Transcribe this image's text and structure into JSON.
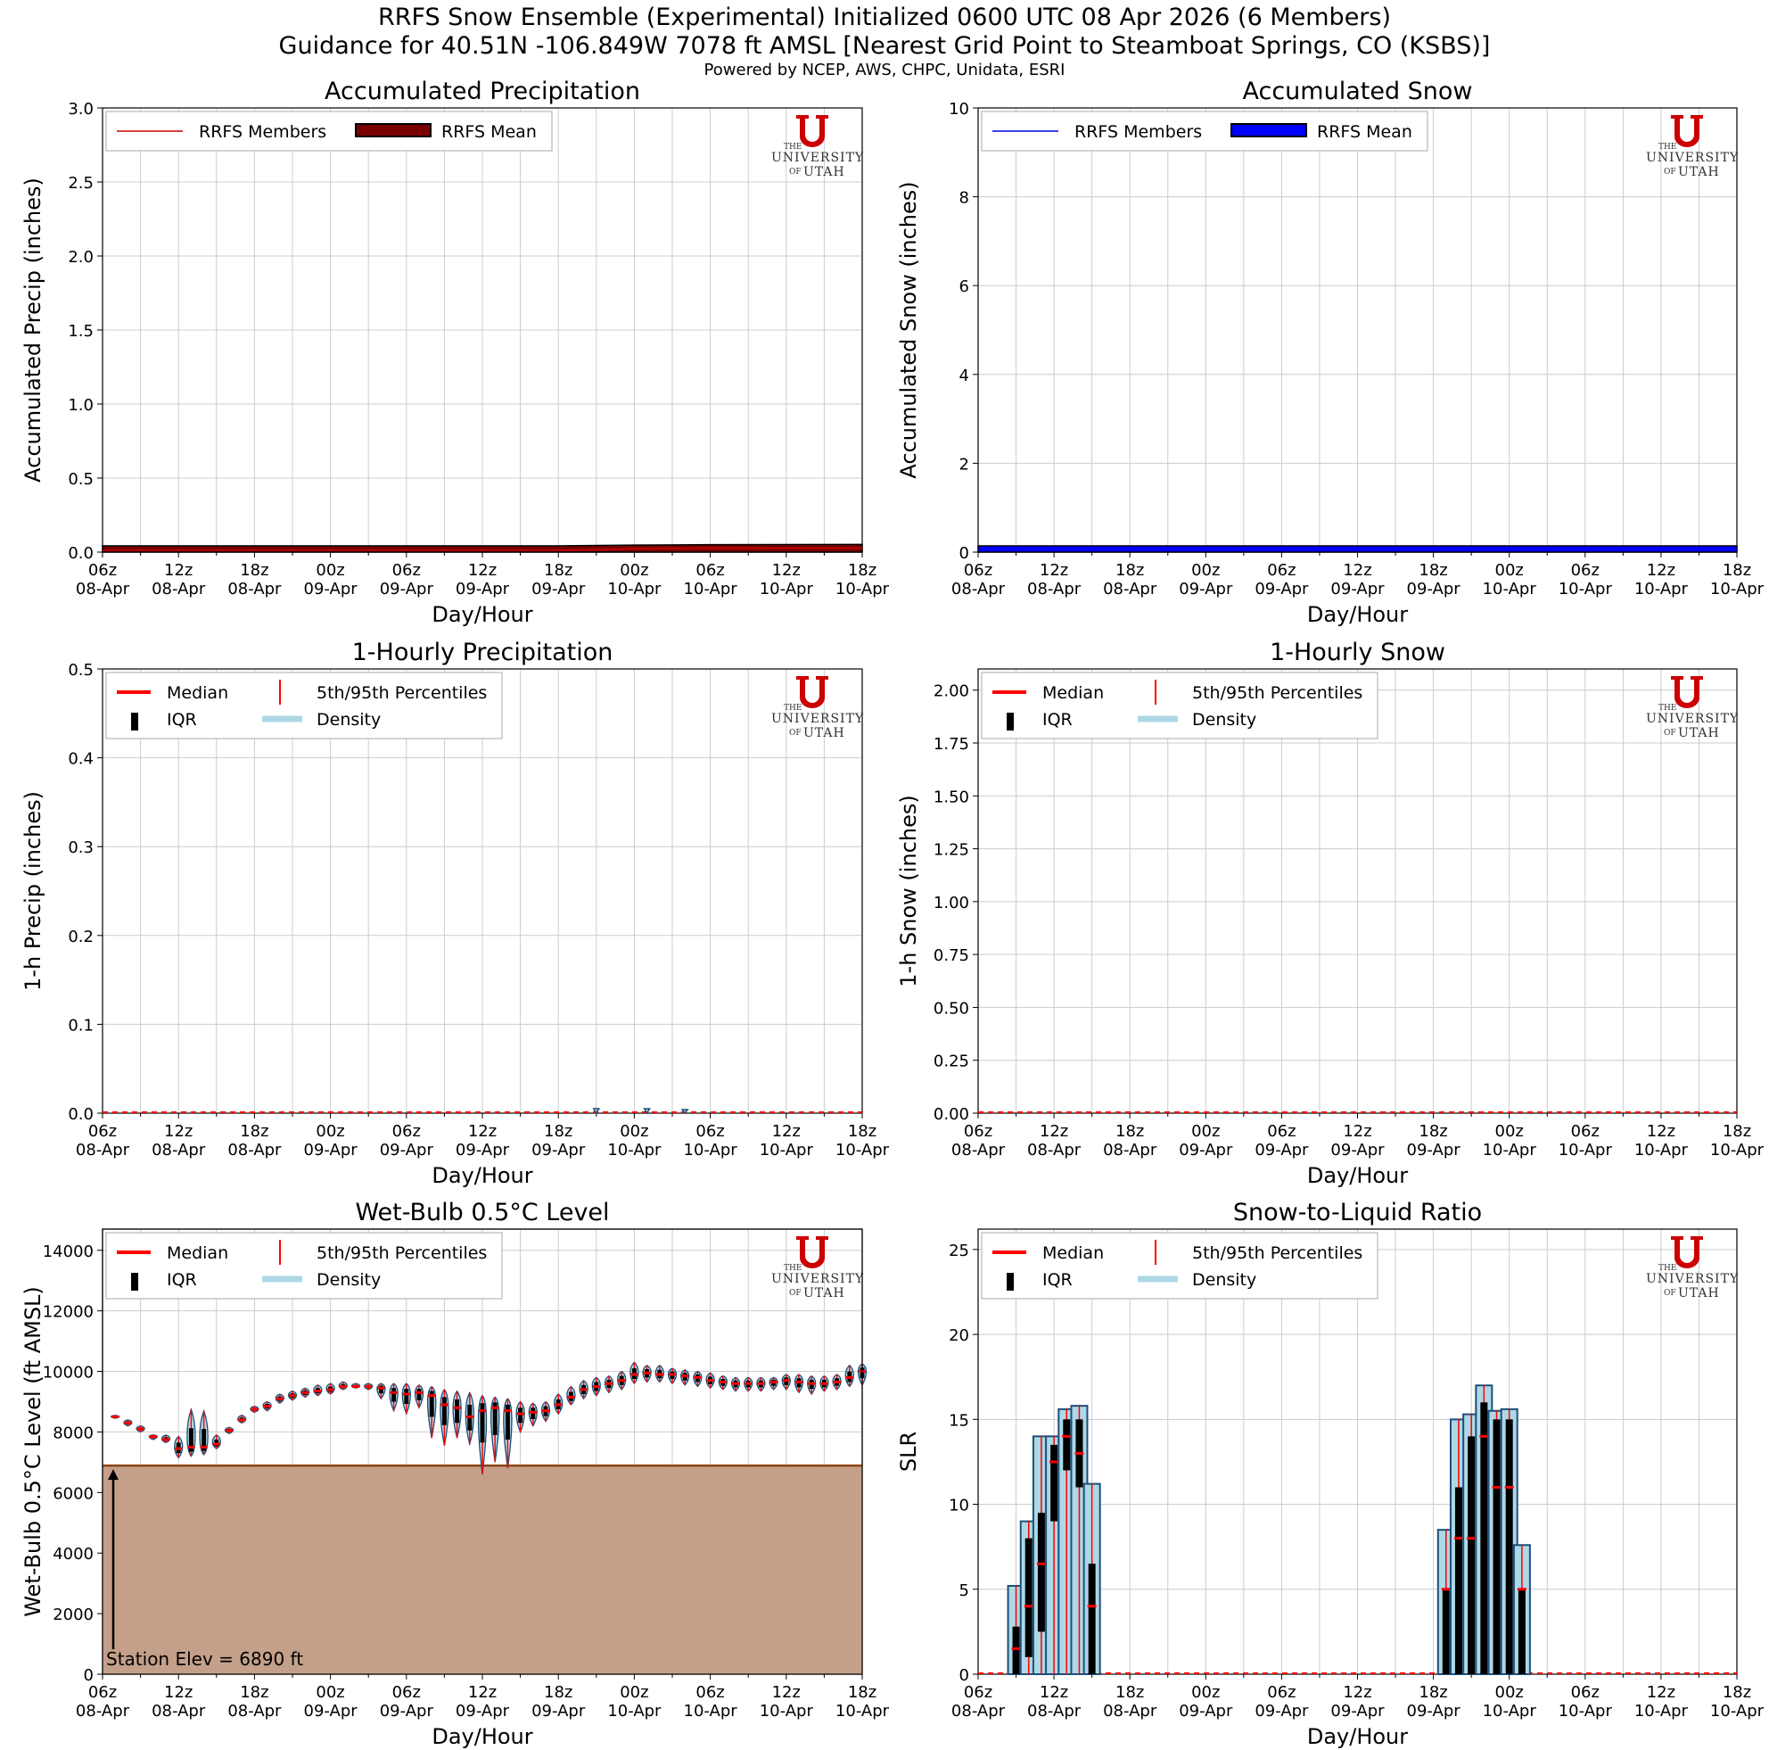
{
  "header": {
    "title_line1": "RRFS Snow Ensemble (Experimental) Initialized 0600 UTC 08 Apr 2026 (6 Members)",
    "title_line2": "Guidance for 40.51N -106.849W 7078 ft AMSL [Nearest Grid Point to Steamboat Springs, CO (KSBS)]",
    "credits": "Powered by NCEP, AWS, CHPC, Unidata, ESRI"
  },
  "colors": {
    "precip_members": "#cc0000",
    "precip_mean": "#7a0000",
    "snow_members": "#0000ee",
    "snow_mean": "#0000ff",
    "median": "#ff0000",
    "iqr": "#000000",
    "density_fill": "#add8e6",
    "density_edge": "#1f4e79",
    "terrain": "#c4a08a",
    "terrain_edge": "#8b4513",
    "utah_red": "#cc0000"
  },
  "logo": {
    "the": "THE",
    "university": "UNIVERSITY",
    "of": "OF",
    "utah": "UTAH"
  },
  "x_axis": {
    "label": "Day/Hour",
    "ticks": [
      {
        "h": 0,
        "hour": "06z",
        "day": "08-Apr"
      },
      {
        "h": 6,
        "hour": "12z",
        "day": "08-Apr"
      },
      {
        "h": 12,
        "hour": "18z",
        "day": "08-Apr"
      },
      {
        "h": 18,
        "hour": "00z",
        "day": "09-Apr"
      },
      {
        "h": 24,
        "hour": "06z",
        "day": "09-Apr"
      },
      {
        "h": 30,
        "hour": "12z",
        "day": "09-Apr"
      },
      {
        "h": 36,
        "hour": "18z",
        "day": "09-Apr"
      },
      {
        "h": 42,
        "hour": "00z",
        "day": "10-Apr"
      },
      {
        "h": 48,
        "hour": "06z",
        "day": "10-Apr"
      },
      {
        "h": 54,
        "hour": "12z",
        "day": "10-Apr"
      },
      {
        "h": 60,
        "hour": "18z",
        "day": "10-Apr"
      }
    ]
  },
  "chart_data": [
    {
      "id": "accum_precip",
      "type": "line",
      "title": "Accumulated Precipitation",
      "xlabel": "Day/Hour",
      "ylabel": "Accumulated Precip (inches)",
      "xlim": [
        0,
        60
      ],
      "ylim": [
        0,
        3.0
      ],
      "yticks": [
        "0.0",
        "0.5",
        "1.0",
        "1.5",
        "2.0",
        "2.5",
        "3.0"
      ],
      "ytick_values": [
        0,
        0.5,
        1,
        1.5,
        2,
        2.5,
        3
      ],
      "legend": [
        "RRFS Members",
        "RRFS Mean"
      ],
      "x": [
        0,
        12,
        24,
        36,
        42,
        48,
        60
      ],
      "series": [
        {
          "name": "RRFS Mean",
          "values": [
            0.0,
            0.0,
            0.0,
            0.0,
            0.005,
            0.008,
            0.01
          ]
        },
        {
          "name": "RRFS Members",
          "values": [
            0.0,
            0.0,
            0.0,
            0.0,
            0.01,
            0.015,
            0.015
          ]
        }
      ]
    },
    {
      "id": "accum_snow",
      "type": "line",
      "title": "Accumulated Snow",
      "xlabel": "Day/Hour",
      "ylabel": "Accumulated Snow (inches)",
      "xlim": [
        0,
        60
      ],
      "ylim": [
        0,
        10
      ],
      "yticks": [
        "0",
        "2",
        "4",
        "6",
        "8",
        "10"
      ],
      "ytick_values": [
        0,
        2,
        4,
        6,
        8,
        10
      ],
      "legend": [
        "RRFS Members",
        "RRFS Mean"
      ],
      "x": [
        0,
        60
      ],
      "series": [
        {
          "name": "RRFS Mean",
          "values": [
            0.0,
            0.0
          ]
        },
        {
          "name": "RRFS Members",
          "values": [
            0.0,
            0.0
          ]
        }
      ]
    },
    {
      "id": "hourly_precip",
      "type": "violin",
      "title": "1-Hourly Precipitation",
      "xlabel": "Day/Hour",
      "ylabel": "1-h Precip (inches)",
      "xlim": [
        -0.7,
        60.7
      ],
      "ylim": [
        0,
        0.5
      ],
      "yticks": [
        "0.0",
        "0.1",
        "0.2",
        "0.3",
        "0.4",
        "0.5"
      ],
      "ytick_values": [
        0,
        0.1,
        0.2,
        0.3,
        0.4,
        0.5
      ],
      "legend": [
        "Median",
        "5th/95th Percentiles",
        "IQR",
        "Density"
      ],
      "nonzero": [
        {
          "h": 39,
          "max": 0.005
        },
        {
          "h": 43,
          "max": 0.005
        },
        {
          "h": 46,
          "max": 0.004
        }
      ]
    },
    {
      "id": "hourly_snow",
      "type": "violin",
      "title": "1-Hourly Snow",
      "xlabel": "Day/Hour",
      "ylabel": "1-h Snow (inches)",
      "xlim": [
        -0.7,
        60.7
      ],
      "ylim": [
        0,
        2.1
      ],
      "yticks": [
        "0.00",
        "0.25",
        "0.50",
        "0.75",
        "1.00",
        "1.25",
        "1.50",
        "1.75",
        "2.00"
      ],
      "ytick_values": [
        0,
        0.25,
        0.5,
        0.75,
        1,
        1.25,
        1.5,
        1.75,
        2
      ],
      "legend": [
        "Median",
        "5th/95th Percentiles",
        "IQR",
        "Density"
      ],
      "nonzero": []
    },
    {
      "id": "wetbulb",
      "type": "violin",
      "title": "Wet-Bulb 0.5°C Level",
      "xlabel": "Day/Hour",
      "ylabel": "Wet-Bulb 0.5°C Level (ft AMSL)",
      "xlim": [
        -0.7,
        60.7
      ],
      "ylim": [
        0,
        14700
      ],
      "yticks": [
        "0",
        "2000",
        "4000",
        "6000",
        "8000",
        "10000",
        "12000",
        "14000"
      ],
      "ytick_values": [
        0,
        2000,
        4000,
        6000,
        8000,
        10000,
        12000,
        14000
      ],
      "legend": [
        "Median",
        "5th/95th Percentiles",
        "IQR",
        "Density"
      ],
      "station_elev": 6890,
      "station_label": "Station Elev = 6890 ft",
      "hours": [
        1,
        2,
        3,
        4,
        5,
        6,
        7,
        8,
        9,
        10,
        11,
        12,
        13,
        14,
        15,
        16,
        17,
        18,
        19,
        20,
        21,
        22,
        23,
        24,
        25,
        26,
        27,
        28,
        29,
        30,
        31,
        32,
        33,
        34,
        35,
        36,
        37,
        38,
        39,
        40,
        41,
        42,
        43,
        44,
        45,
        46,
        47,
        48,
        49,
        50,
        51,
        52,
        53,
        54,
        55,
        56,
        57,
        58,
        59,
        60
      ],
      "median": [
        8500,
        8300,
        8100,
        7850,
        7750,
        7450,
        7500,
        7500,
        7600,
        8050,
        8400,
        8750,
        8850,
        9100,
        9200,
        9300,
        9350,
        9400,
        9500,
        9500,
        9500,
        9450,
        9300,
        9250,
        9300,
        9200,
        8900,
        8800,
        8500,
        8700,
        8800,
        8700,
        8600,
        8650,
        8700,
        8900,
        9150,
        9400,
        9500,
        9600,
        9700,
        9900,
        9950,
        9900,
        9900,
        9850,
        9800,
        9700,
        9650,
        9600,
        9600,
        9600,
        9650,
        9700,
        9650,
        9600,
        9600,
        9650,
        9800,
        10000
      ],
      "p5": [
        8450,
        8200,
        8000,
        7750,
        7650,
        7150,
        7200,
        7250,
        7450,
        7950,
        8300,
        8650,
        8700,
        8950,
        9050,
        9150,
        9200,
        9250,
        9400,
        9450,
        9400,
        9100,
        8700,
        8600,
        8800,
        7800,
        7550,
        7800,
        7600,
        6600,
        7000,
        6800,
        8000,
        8200,
        8350,
        8600,
        8900,
        9100,
        9200,
        9300,
        9400,
        9600,
        9650,
        9650,
        9600,
        9550,
        9500,
        9450,
        9400,
        9350,
        9350,
        9350,
        9400,
        9400,
        9300,
        9250,
        9350,
        9400,
        9500,
        9550
      ],
      "p95": [
        8550,
        8400,
        8200,
        7900,
        7900,
        7850,
        8750,
        8700,
        7900,
        8150,
        8550,
        8850,
        9000,
        9250,
        9350,
        9450,
        9550,
        9600,
        9650,
        9600,
        9600,
        9600,
        9600,
        9600,
        9550,
        9500,
        9400,
        9350,
        9300,
        9200,
        9150,
        9100,
        9000,
        8950,
        9000,
        9250,
        9500,
        9700,
        9800,
        9850,
        10000,
        10300,
        10200,
        10200,
        10100,
        10050,
        10000,
        9950,
        9850,
        9800,
        9800,
        9800,
        9800,
        9900,
        9900,
        9850,
        9850,
        9900,
        10200,
        10250
      ]
    },
    {
      "id": "slr",
      "type": "violin",
      "title": "Snow-to-Liquid Ratio",
      "xlabel": "Day/Hour",
      "ylabel": "SLR",
      "xlim": [
        -0.7,
        60.7
      ],
      "ylim": [
        0,
        26.2
      ],
      "yticks": [
        "0",
        "5",
        "10",
        "15",
        "20",
        "25"
      ],
      "ytick_values": [
        0,
        5,
        10,
        15,
        20,
        25
      ],
      "legend": [
        "Median",
        "5th/95th Percentiles",
        "IQR",
        "Density"
      ],
      "active": [
        {
          "h": 3,
          "med": 1.5,
          "q1": 0,
          "q3": 2.8,
          "max": 5.2
        },
        {
          "h": 4,
          "med": 4,
          "q1": 1,
          "q3": 8,
          "max": 9
        },
        {
          "h": 5,
          "med": 6.5,
          "q1": 2.5,
          "q3": 9.5,
          "max": 14
        },
        {
          "h": 6,
          "med": 12.5,
          "q1": 9,
          "q3": 13.5,
          "max": 14
        },
        {
          "h": 7,
          "med": 14,
          "q1": 12,
          "q3": 15,
          "max": 15.6
        },
        {
          "h": 8,
          "med": 13,
          "q1": 11,
          "q3": 15,
          "max": 15.8
        },
        {
          "h": 9,
          "med": 4,
          "q1": 0,
          "q3": 6.5,
          "max": 11.2
        },
        {
          "h": 37,
          "med": 5,
          "q1": 0,
          "q3": 5,
          "max": 8.5
        },
        {
          "h": 38,
          "med": 8,
          "q1": 0,
          "q3": 11,
          "max": 15
        },
        {
          "h": 39,
          "med": 8,
          "q1": 0,
          "q3": 14,
          "max": 15.3
        },
        {
          "h": 40,
          "med": 14,
          "q1": 0,
          "q3": 16,
          "max": 17
        },
        {
          "h": 41,
          "med": 11,
          "q1": 0,
          "q3": 15,
          "max": 15.5
        },
        {
          "h": 42,
          "med": 11,
          "q1": 0,
          "q3": 15,
          "max": 15.6
        },
        {
          "h": 43,
          "med": 5,
          "q1": 0,
          "q3": 5,
          "max": 7.6
        }
      ]
    }
  ]
}
